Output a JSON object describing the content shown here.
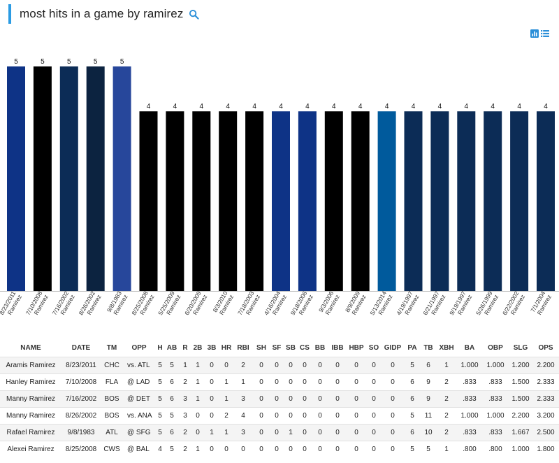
{
  "search": {
    "query": "most hits in a game by ramirez"
  },
  "icons": {
    "search": "search-icon",
    "chart_view": "bar-chart-icon",
    "table_view": "list-icon"
  },
  "colors": {
    "accent": "#2b9be3",
    "icon_blue": "#2b8fd8"
  },
  "chart_data": {
    "type": "bar",
    "categories": [
      "8/23/2011 Ramirez",
      "7/10/2008 Ramirez",
      "7/16/2002 Ramirez",
      "8/26/2002 Ramirez",
      "9/8/1983 Ramirez",
      "8/25/2008 Ramirez",
      "5/25/2009 Ramirez",
      "6/20/2009 Ramirez",
      "8/3/2010 Ramirez",
      "7/18/2003 Ramirez",
      "4/16/2004 Ramirez",
      "9/18/2006 Ramirez",
      "9/3/2006 Ramirez",
      "8/9/2009 Ramirez",
      "5/13/2014 Ramirez",
      "4/19/1997 Ramirez",
      "6/21/1997 Ramirez",
      "9/19/1997 Ramirez",
      "5/26/1999 Ramirez",
      "6/22/2002 Ramirez",
      "7/1/2004 Ramirez"
    ],
    "dates": [
      "8/23/2011",
      "7/10/2008",
      "7/16/2002",
      "8/26/2002",
      "9/8/1983",
      "8/25/2008",
      "5/25/2009",
      "6/20/2009",
      "8/3/2010",
      "7/18/2003",
      "4/16/2004",
      "9/18/2006",
      "9/3/2006",
      "8/9/2009",
      "5/13/2014",
      "4/19/1997",
      "6/21/1997",
      "9/19/1997",
      "5/26/1999",
      "6/22/2002",
      "7/1/2004"
    ],
    "names": [
      "Ramirez",
      "Ramirez",
      "Ramirez",
      "Ramirez",
      "Ramirez",
      "Ramirez",
      "Ramirez",
      "Ramirez",
      "Ramirez",
      "Ramirez",
      "Ramirez",
      "Ramirez",
      "Ramirez",
      "Ramirez",
      "Ramirez",
      "Ramirez",
      "Ramirez",
      "Ramirez",
      "Ramirez",
      "Ramirez",
      "Ramirez"
    ],
    "values": [
      5,
      5,
      5,
      5,
      5,
      4,
      4,
      4,
      4,
      4,
      4,
      4,
      4,
      4,
      4,
      4,
      4,
      4,
      4,
      4,
      4
    ],
    "bar_colors": [
      "#0e3386",
      "#000000",
      "#0c2c56",
      "#0c2340",
      "#27479b",
      "#000000",
      "#000000",
      "#000000",
      "#000000",
      "#000000",
      "#0e3386",
      "#0e3386",
      "#000000",
      "#000000",
      "#005a9c",
      "#0c2c56",
      "#0c2c56",
      "#0c2c56",
      "#0c2c56",
      "#0c2c56",
      "#0c2c56"
    ],
    "ylim": [
      0,
      5
    ],
    "grid": false,
    "legend": "none"
  },
  "table": {
    "columns": [
      "NAME",
      "DATE",
      "TM",
      "OPP",
      "H",
      "AB",
      "R",
      "2B",
      "3B",
      "HR",
      "RBI",
      "SH",
      "SF",
      "SB",
      "CS",
      "BB",
      "IBB",
      "HBP",
      "SO",
      "GIDP",
      "PA",
      "TB",
      "XBH",
      "BA",
      "OBP",
      "SLG",
      "OPS"
    ],
    "rows": [
      [
        "Aramis Ramirez",
        "8/23/2011",
        "CHC",
        "vs. ATL",
        "5",
        "5",
        "1",
        "1",
        "0",
        "0",
        "2",
        "0",
        "0",
        "0",
        "0",
        "0",
        "0",
        "0",
        "0",
        "0",
        "5",
        "6",
        "1",
        "1.000",
        "1.000",
        "1.200",
        "2.200"
      ],
      [
        "Hanley Ramirez",
        "7/10/2008",
        "FLA",
        "@ LAD",
        "5",
        "6",
        "2",
        "1",
        "0",
        "1",
        "1",
        "0",
        "0",
        "0",
        "0",
        "0",
        "0",
        "0",
        "0",
        "0",
        "6",
        "9",
        "2",
        ".833",
        ".833",
        "1.500",
        "2.333"
      ],
      [
        "Manny Ramirez",
        "7/16/2002",
        "BOS",
        "@ DET",
        "5",
        "6",
        "3",
        "1",
        "0",
        "1",
        "3",
        "0",
        "0",
        "0",
        "0",
        "0",
        "0",
        "0",
        "0",
        "0",
        "6",
        "9",
        "2",
        ".833",
        ".833",
        "1.500",
        "2.333"
      ],
      [
        "Manny Ramirez",
        "8/26/2002",
        "BOS",
        "vs. ANA",
        "5",
        "5",
        "3",
        "0",
        "0",
        "2",
        "4",
        "0",
        "0",
        "0",
        "0",
        "0",
        "0",
        "0",
        "0",
        "0",
        "5",
        "11",
        "2",
        "1.000",
        "1.000",
        "2.200",
        "3.200"
      ],
      [
        "Rafael Ramirez",
        "9/8/1983",
        "ATL",
        "@ SFG",
        "5",
        "6",
        "2",
        "0",
        "1",
        "1",
        "3",
        "0",
        "0",
        "1",
        "0",
        "0",
        "0",
        "0",
        "0",
        "0",
        "6",
        "10",
        "2",
        ".833",
        ".833",
        "1.667",
        "2.500"
      ],
      [
        "Alexei Ramirez",
        "8/25/2008",
        "CWS",
        "@ BAL",
        "4",
        "5",
        "2",
        "1",
        "0",
        "0",
        "0",
        "0",
        "0",
        "0",
        "0",
        "0",
        "0",
        "0",
        "0",
        "0",
        "5",
        "5",
        "1",
        ".800",
        ".800",
        "1.000",
        "1.800"
      ]
    ]
  }
}
